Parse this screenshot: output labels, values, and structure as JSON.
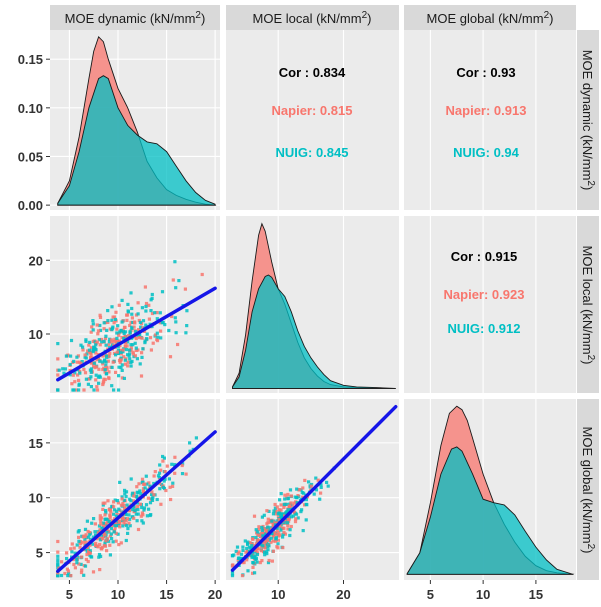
{
  "colors": {
    "napier": "#F8766D",
    "nuig": "#00BFC4",
    "fit_line": "#1515E8",
    "panel_bg": "#EBEBEB",
    "strip_bg": "#D9D9D9",
    "cor_total": "#000000"
  },
  "variables": [
    {
      "name": "MOE dynamic (kN/mm",
      "sup": "2",
      "close": ")"
    },
    {
      "name": "MOE local (kN/mm",
      "sup": "2",
      "close": ")"
    },
    {
      "name": "MOE global (kN/mm",
      "sup": "2",
      "close": ")"
    }
  ],
  "chart_data": [
    {
      "type": "area",
      "panel": "dynamic-density",
      "series": [
        {
          "name": "",
          "color": "napier",
          "x": [
            3.8,
            5,
            6,
            7,
            7.5,
            8,
            8.5,
            9,
            10,
            11,
            12,
            13,
            14,
            15,
            16,
            17,
            18,
            19,
            20
          ],
          "y": [
            0.002,
            0.025,
            0.07,
            0.13,
            0.158,
            0.173,
            0.168,
            0.15,
            0.12,
            0.1,
            0.075,
            0.045,
            0.028,
            0.016,
            0.01,
            0.006,
            0.003,
            0.001,
            0
          ]
        },
        {
          "name": "",
          "color": "nuig",
          "x": [
            3.8,
            5,
            6,
            7,
            8,
            8.5,
            9,
            10,
            11,
            12,
            13,
            14,
            15,
            16,
            17,
            18,
            19,
            20
          ],
          "y": [
            0.002,
            0.02,
            0.055,
            0.1,
            0.13,
            0.133,
            0.13,
            0.1,
            0.082,
            0.072,
            0.065,
            0.063,
            0.055,
            0.04,
            0.025,
            0.013,
            0.005,
            0.001
          ]
        }
      ],
      "yticks": [
        "0.00",
        "0.05",
        "0.10",
        "0.15"
      ],
      "ylim": [
        -0.005,
        0.18
      ],
      "xlim": [
        3,
        20.5
      ]
    },
    {
      "type": "table",
      "panel": "dynamic-vs-local",
      "lines": [
        {
          "label": "Cor : 0.834",
          "color": "cor_total"
        },
        {
          "label": "Napier: 0.815",
          "color": "napier"
        },
        {
          "label": "NUIG: 0.845",
          "color": "nuig"
        }
      ]
    },
    {
      "type": "table",
      "panel": "dynamic-vs-global",
      "lines": [
        {
          "label": "Cor : 0.93",
          "color": "cor_total"
        },
        {
          "label": "Napier: 0.913",
          "color": "napier"
        },
        {
          "label": "NUIG: 0.94",
          "color": "nuig"
        }
      ]
    },
    {
      "type": "scatter",
      "panel": "local-vs-dynamic",
      "xlim": [
        3,
        20.5
      ],
      "ylim": [
        2,
        26
      ],
      "yticks": [
        10,
        20
      ],
      "fit": {
        "x": [
          3.8,
          20
        ],
        "y": [
          3.8,
          16.2
        ]
      },
      "n_points_per_series": 220,
      "scatter_params": {
        "x_mean": 10,
        "x_sd": 3.1,
        "x_min": 3.8,
        "x_max": 20,
        "slope": 0.76,
        "intercept": 0.9,
        "y_sd": 2.4
      }
    },
    {
      "type": "area",
      "panel": "local-density",
      "series": [
        {
          "name": "",
          "color": "napier",
          "x": [
            3,
            4,
            5,
            6,
            7,
            7.5,
            8,
            9,
            10,
            11,
            12,
            13,
            14,
            15,
            16,
            17,
            18,
            20,
            22,
            25,
            28
          ],
          "y": [
            0.002,
            0.02,
            0.07,
            0.14,
            0.2,
            0.215,
            0.205,
            0.165,
            0.13,
            0.11,
            0.085,
            0.06,
            0.04,
            0.026,
            0.016,
            0.009,
            0.005,
            0.002,
            0.001,
            0,
            0
          ]
        },
        {
          "name": "",
          "color": "nuig",
          "x": [
            3,
            4,
            5,
            6,
            7,
            8,
            8.5,
            9,
            10,
            11,
            12,
            13,
            14,
            15,
            16,
            17,
            18,
            20,
            22,
            25,
            28
          ],
          "y": [
            0.002,
            0.015,
            0.05,
            0.1,
            0.13,
            0.146,
            0.148,
            0.145,
            0.13,
            0.12,
            0.1,
            0.075,
            0.055,
            0.04,
            0.028,
            0.018,
            0.01,
            0.004,
            0.002,
            0.001,
            0
          ]
        }
      ],
      "ylim": [
        -0.006,
        0.225
      ],
      "xlim": [
        2,
        28.5
      ]
    },
    {
      "type": "table",
      "panel": "local-vs-global",
      "lines": [
        {
          "label": "Cor : 0.915",
          "color": "cor_total"
        },
        {
          "label": "Napier: 0.923",
          "color": "napier"
        },
        {
          "label": "NUIG: 0.912",
          "color": "nuig"
        }
      ]
    },
    {
      "type": "scatter",
      "panel": "global-vs-dynamic",
      "xlim": [
        3,
        20.5
      ],
      "ylim": [
        2.5,
        19
      ],
      "yticks": [
        5,
        10,
        15
      ],
      "xticks": [
        5,
        10,
        15,
        20
      ],
      "fit": {
        "x": [
          3.8,
          20
        ],
        "y": [
          3.3,
          16
        ]
      },
      "n_points_per_series": 220,
      "scatter_params": {
        "x_mean": 10,
        "x_sd": 3.1,
        "x_min": 3.8,
        "x_max": 20,
        "slope": 0.78,
        "intercept": 0.3,
        "y_sd": 1.1
      }
    },
    {
      "type": "scatter",
      "panel": "global-vs-local",
      "xlim": [
        2,
        28.5
      ],
      "ylim": [
        2.5,
        19
      ],
      "xticks": [
        10,
        20
      ],
      "fit": {
        "x": [
          3,
          28
        ],
        "y": [
          3.4,
          18.3
        ]
      },
      "n_points_per_series": 220,
      "scatter_params": {
        "x_mean": 9.5,
        "x_sd": 3.2,
        "x_min": 3,
        "x_max": 27,
        "slope": 0.6,
        "intercept": 1.6,
        "y_sd": 0.9
      }
    },
    {
      "type": "area",
      "panel": "global-density",
      "series": [
        {
          "name": "",
          "color": "napier",
          "x": [
            2.8,
            4,
            5,
            6,
            6.8,
            7.5,
            8,
            8.5,
            9,
            10,
            11,
            12,
            13,
            14,
            15,
            16,
            17,
            18.5
          ],
          "y": [
            0.001,
            0.03,
            0.1,
            0.18,
            0.225,
            0.235,
            0.23,
            0.215,
            0.19,
            0.14,
            0.1,
            0.07,
            0.045,
            0.025,
            0.012,
            0.005,
            0.002,
            0
          ]
        },
        {
          "name": "",
          "color": "nuig",
          "x": [
            2.8,
            4,
            5,
            6,
            7,
            7.5,
            8,
            9,
            10,
            11,
            12,
            13,
            14,
            15,
            16,
            17,
            18.5
          ],
          "y": [
            0.001,
            0.03,
            0.08,
            0.14,
            0.175,
            0.178,
            0.172,
            0.14,
            0.105,
            0.1,
            0.097,
            0.083,
            0.06,
            0.038,
            0.02,
            0.007,
            0
          ]
        }
      ],
      "xticks": [
        5,
        10,
        15
      ],
      "ylim": [
        -0.008,
        0.245
      ],
      "xlim": [
        2.5,
        18.8
      ]
    }
  ]
}
